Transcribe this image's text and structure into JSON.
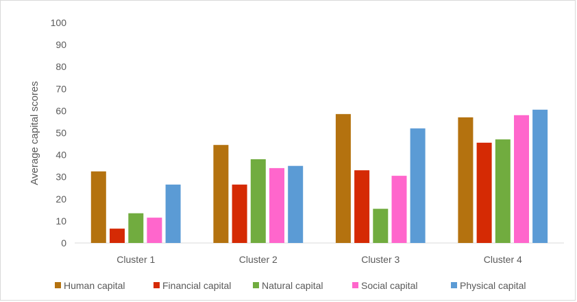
{
  "chart_data": {
    "type": "bar",
    "title": "",
    "xlabel": "",
    "ylabel": "Average capital scores",
    "ylim": [
      0,
      100
    ],
    "yticks": [
      0,
      10,
      20,
      30,
      40,
      50,
      60,
      70,
      80,
      90,
      100
    ],
    "grid": false,
    "legend_position": "bottom",
    "categories": [
      "Cluster 1",
      "Cluster 2",
      "Cluster 3",
      "Cluster 4"
    ],
    "series": [
      {
        "name": "Human capital",
        "color": "#b4720f",
        "values": [
          32.5,
          44.5,
          58.5,
          57
        ]
      },
      {
        "name": "Financial capital",
        "color": "#d52a04",
        "values": [
          6.5,
          26.5,
          33,
          45.5
        ]
      },
      {
        "name": "Natural capital",
        "color": "#71ac3f",
        "values": [
          13.5,
          38,
          15.5,
          47
        ]
      },
      {
        "name": "Social capital",
        "color": "#ff66cc",
        "values": [
          11.5,
          34,
          30.5,
          58
        ]
      },
      {
        "name": "Physical capital",
        "color": "#5b9bd5",
        "values": [
          26.5,
          35,
          52,
          60.5
        ]
      }
    ]
  }
}
